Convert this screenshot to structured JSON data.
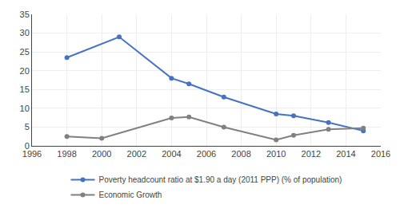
{
  "chart_data": {
    "type": "line",
    "series": [
      {
        "name": "Poverty headcount ratio at $1.90 a day (2011 PPP) (% of population)",
        "color": "#4472C4",
        "x": [
          1998,
          2001,
          2004,
          2005,
          2007,
          2010,
          2011,
          2013,
          2015
        ],
        "values": [
          23.5,
          29.0,
          18.0,
          16.5,
          13.0,
          8.5,
          8.0,
          6.2,
          4.0
        ]
      },
      {
        "name": "Economic Growth",
        "color": "#808080",
        "x": [
          1998,
          2000,
          2004,
          2005,
          2007,
          2010,
          2011,
          2013,
          2015
        ],
        "values": [
          2.5,
          2.0,
          7.4,
          7.7,
          5.0,
          1.6,
          2.8,
          4.4,
          4.7
        ]
      }
    ],
    "marker": "circle",
    "xlim": [
      1996,
      2016
    ],
    "xticks": [
      1996,
      1998,
      2000,
      2002,
      2004,
      2006,
      2008,
      2010,
      2012,
      2014,
      2016
    ],
    "ylim": [
      0,
      35
    ],
    "yticks": [
      0,
      5,
      10,
      15,
      20,
      25,
      30,
      35
    ],
    "grid": true,
    "legend": "bottom"
  }
}
